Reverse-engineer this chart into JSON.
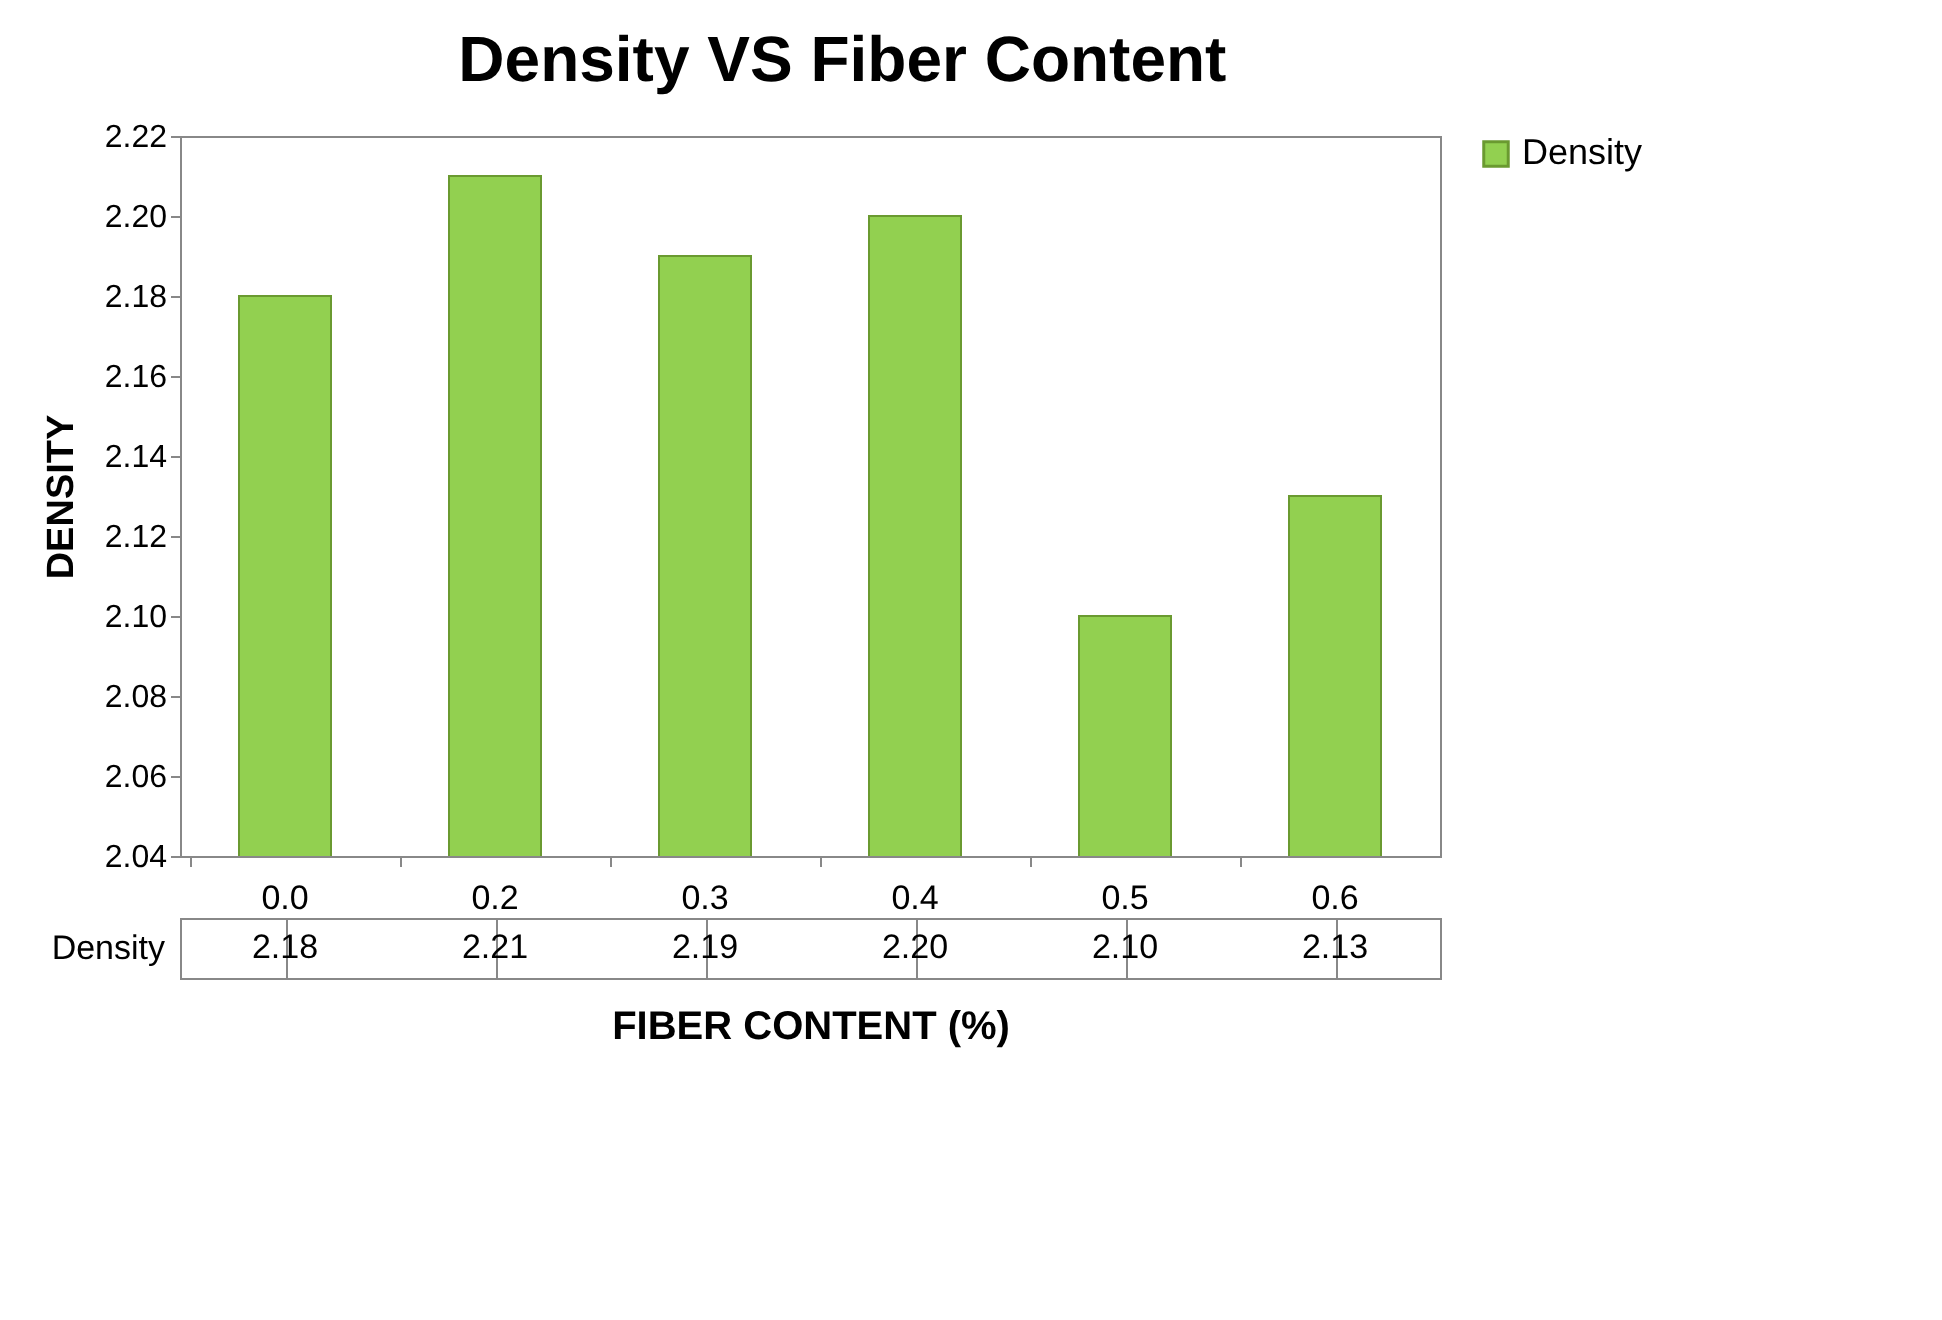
{
  "chart_data": {
    "type": "bar",
    "title": "Density VS Fiber Content",
    "xlabel": "FIBER CONTENT (%)",
    "ylabel": "DENSITY",
    "categories": [
      "0.0",
      "0.2",
      "0.3",
      "0.4",
      "0.5",
      "0.6"
    ],
    "series": [
      {
        "name": "Density",
        "color": "#92d050",
        "values": [
          2.18,
          2.21,
          2.19,
          2.2,
          2.1,
          2.13
        ],
        "value_labels": [
          "2.18",
          "2.21",
          "2.19",
          "2.20",
          "2.10",
          "2.13"
        ]
      }
    ],
    "ylim": [
      2.04,
      2.22
    ],
    "yticks": [
      2.04,
      2.06,
      2.08,
      {
        "value": 2.1,
        "label": "2.10"
      },
      2.12,
      2.14,
      2.16,
      2.18,
      {
        "value": 2.2,
        "label": "2.20"
      },
      2.22
    ],
    "grid": false,
    "legend": "right"
  }
}
